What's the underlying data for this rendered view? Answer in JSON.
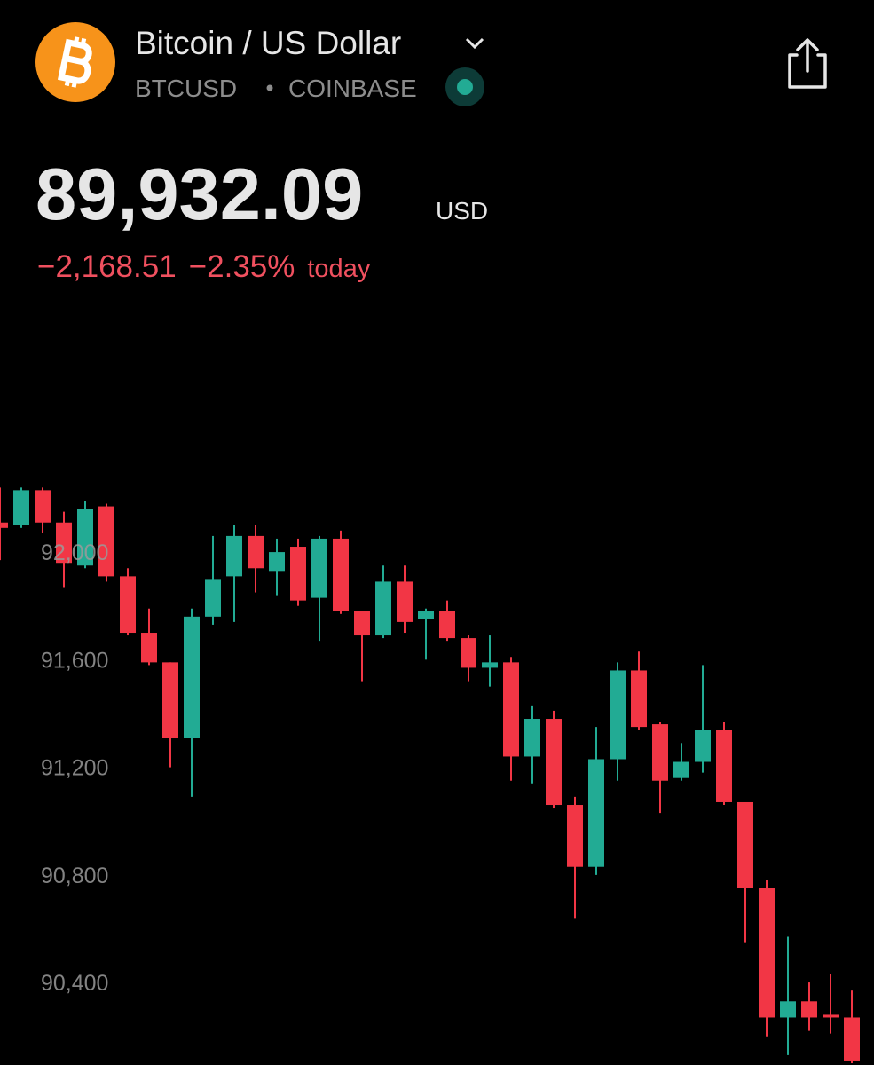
{
  "header": {
    "name": "Bitcoin / US Dollar",
    "symbol": "BTCUSD",
    "exchange": "COINBASE",
    "price": "89,932.09",
    "currency": "USD",
    "change": "−2,168.51",
    "change_percent": "−2.35%",
    "period": "today"
  },
  "chart_data": {
    "type": "candlestick",
    "up_color": "#22ab94",
    "down_color": "#f23645",
    "ylim": [
      90100,
      92350
    ],
    "yticks": [
      {
        "value": 90400,
        "label": "90,400"
      },
      {
        "value": 90800,
        "label": "90,800"
      },
      {
        "value": 91200,
        "label": "91,200"
      },
      {
        "value": 91600,
        "label": "91,600"
      },
      {
        "value": 92000,
        "label": "92,000"
      }
    ],
    "open": [
      92110,
      92100,
      92230,
      92110,
      91950,
      92170,
      91910,
      91700,
      91590,
      91310,
      91760,
      91910,
      92060,
      91930,
      92020,
      91830,
      92050,
      91780,
      91690,
      91890,
      91750,
      91780,
      91680,
      91570,
      91590,
      91240,
      91380,
      91060,
      90830,
      91230,
      91560,
      91360,
      91160,
      91220,
      91340,
      91070,
      90750,
      90270,
      90330,
      90280,
      90270
    ],
    "high": [
      92240,
      92240,
      92240,
      92150,
      92190,
      92180,
      91940,
      91790,
      91590,
      91790,
      92060,
      92100,
      92100,
      92050,
      92050,
      92060,
      92080,
      91780,
      91950,
      91950,
      91790,
      91820,
      91690,
      91690,
      91610,
      91430,
      91410,
      91090,
      91350,
      91590,
      91630,
      91370,
      91290,
      91580,
      91370,
      91070,
      90780,
      90570,
      90400,
      90430,
      90370
    ],
    "low": [
      91970,
      92090,
      92070,
      91870,
      91940,
      91890,
      91690,
      91580,
      91200,
      91090,
      91730,
      91740,
      91850,
      91840,
      91800,
      91670,
      91770,
      91520,
      91680,
      91700,
      91600,
      91670,
      91520,
      91500,
      91150,
      91140,
      91050,
      90640,
      90800,
      91150,
      91340,
      91030,
      91150,
      91180,
      91060,
      90550,
      90200,
      90130,
      90220,
      90210,
      90100
    ],
    "close": [
      92090,
      92230,
      92110,
      91960,
      92160,
      91910,
      91700,
      91590,
      91310,
      91760,
      91900,
      92060,
      91940,
      92000,
      91820,
      92050,
      91780,
      91690,
      91890,
      91740,
      91780,
      91680,
      91570,
      91590,
      91240,
      91380,
      91060,
      90830,
      91230,
      91560,
      91350,
      91150,
      91220,
      91340,
      91070,
      90750,
      90270,
      90330,
      90270,
      90270,
      90110
    ]
  }
}
